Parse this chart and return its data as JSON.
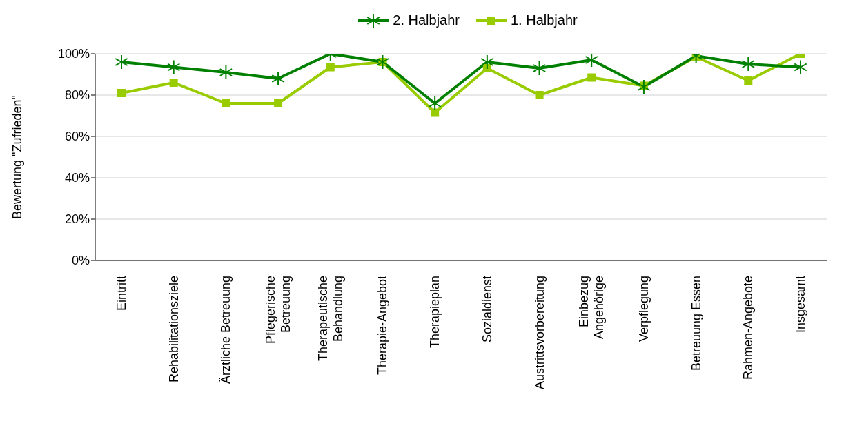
{
  "chart_data": {
    "type": "line",
    "ylabel": "Bewertung \"Zufrieden\"",
    "categories": [
      "Eintritt",
      "Rehabilitationsziele",
      "Ärztliche Betreuung",
      "Pflegerische\nBetreuung",
      "Therapeutische\nBehandlung",
      "Therapie-Angebot",
      "Therapieplan",
      "Sozialdienst",
      "Austrittsvorbereitung",
      "Einbezug\nAngehörige",
      "Verpflegung",
      "Betreuung Essen",
      "Rahmen-Angebote",
      "Insgesamt"
    ],
    "series": [
      {
        "name": "2. Halbjahr",
        "color": "#008000",
        "marker": "cross",
        "values": [
          96,
          93.5,
          91,
          88,
          100,
          96,
          76,
          96,
          93,
          97,
          84,
          99,
          95,
          93.5
        ]
      },
      {
        "name": "1. Halbjahr",
        "color": "#99cc00",
        "marker": "square",
        "values": [
          81,
          86,
          76,
          76,
          93.5,
          96,
          71.5,
          93,
          80,
          88.5,
          84.5,
          98.5,
          87,
          100
        ]
      }
    ],
    "ylim": [
      0,
      100
    ],
    "yticks": [
      {
        "value": 0,
        "label": "0%"
      },
      {
        "value": 20,
        "label": "20%"
      },
      {
        "value": 40,
        "label": "40%"
      },
      {
        "value": 60,
        "label": "60%"
      },
      {
        "value": 80,
        "label": "80%"
      },
      {
        "value": 100,
        "label": "100%"
      }
    ],
    "grid": "y",
    "legend": "top",
    "line_style": "solid"
  }
}
